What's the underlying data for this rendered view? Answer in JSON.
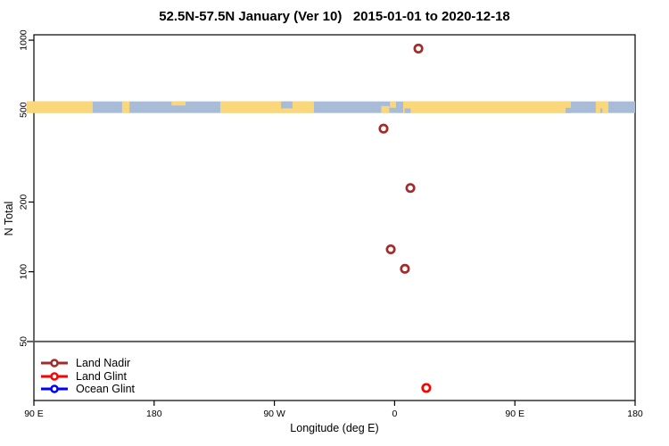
{
  "title": "52.5N-57.5N January (Ver 10)   2015-01-01 to 2020-12-18",
  "legend": {
    "items": [
      {
        "label": "Land Nadir",
        "color": "#A52A2A"
      },
      {
        "label": "Land Glint",
        "color": "#FF0000"
      },
      {
        "label": "Ocean Glint",
        "color": "#0000FF"
      }
    ]
  },
  "map_strip": {
    "description": "land/ocean map band drawn at N=500 level",
    "land_color": "#FBD77C",
    "ocean_color": "#A8BCD8",
    "extent_deg": [
      84.7,
      540
    ],
    "land_segments": [
      {
        "from": 84.7,
        "to": 134.0
      },
      {
        "from": 156.0,
        "to": 161.5
      },
      {
        "from": 193.0,
        "to": 203.5,
        "frac": 0.35,
        "align": "top"
      },
      {
        "from": 229.5,
        "to": 299.6
      },
      {
        "from": 350.0,
        "to": 356.0,
        "frac": 0.6,
        "align": "bottom"
      },
      {
        "from": 356.5,
        "to": 361.0,
        "frac": 0.55,
        "align": "top"
      },
      {
        "from": 366.4,
        "to": 491.9
      },
      {
        "from": 510.5,
        "to": 520.0
      }
    ],
    "ocean_notches": [
      {
        "from": 275.0,
        "to": 283.5,
        "frac": 0.6,
        "align": "top"
      },
      {
        "from": 367.5,
        "to": 372.0,
        "frac": 0.4,
        "align": "bottom"
      },
      {
        "from": 488.0,
        "to": 492.0,
        "frac": 0.45,
        "align": "bottom"
      },
      {
        "from": 514.0,
        "to": 515.5,
        "frac": 0.4,
        "align": "bottom"
      }
    ]
  },
  "chart_data": {
    "type": "scatter",
    "title": "52.5N-57.5N January (Ver 10)   2015-01-01 to 2020-12-18",
    "xlabel": "Longitude (deg E)",
    "ylabel": "N Total",
    "x_mode": "longitude unwrapped eastward from 90E",
    "xlim": [
      90,
      540
    ],
    "x_ticks": [
      {
        "pos": 90,
        "label": "90 E"
      },
      {
        "pos": 180,
        "label": "180"
      },
      {
        "pos": 270,
        "label": "90 W"
      },
      {
        "pos": 360,
        "label": "0"
      },
      {
        "pos": 450,
        "label": "90 E"
      },
      {
        "pos": 540,
        "label": "180"
      }
    ],
    "y_scale": "log10",
    "ylim": [
      27.8,
      1055
    ],
    "y_ticks": [
      {
        "value": 1000,
        "label": "1000"
      },
      {
        "value": 500,
        "label": "500"
      },
      {
        "value": 200,
        "label": "200"
      },
      {
        "value": 100,
        "label": "100"
      },
      {
        "value": 50,
        "label": "50"
      }
    ],
    "reference_line": {
      "y": 50,
      "color": "#555555"
    },
    "grid": "off",
    "legend_position": "bottom-left",
    "marker": {
      "shape": "open-circle",
      "radius": 4.2,
      "stroke_width": 2.7
    },
    "series": [
      {
        "name": "Land Nadir",
        "color": "#A52A2A",
        "points": [
          {
            "lon_deg_e": 17.8,
            "axis_x": 377.8,
            "n_total": 920
          },
          {
            "lon_deg_e": -8.3,
            "axis_x": 351.7,
            "n_total": 415
          },
          {
            "lon_deg_e": 11.8,
            "axis_x": 371.8,
            "n_total": 230
          },
          {
            "lon_deg_e": -2.9,
            "axis_x": 357.1,
            "n_total": 125
          },
          {
            "lon_deg_e": 7.7,
            "axis_x": 367.7,
            "n_total": 103
          }
        ]
      },
      {
        "name": "Land Glint",
        "color": "#FF0000",
        "points": [
          {
            "lon_deg_e": 23.7,
            "axis_x": 383.7,
            "n_total": 31.5
          }
        ]
      },
      {
        "name": "Ocean Glint",
        "color": "#0000FF",
        "points": []
      }
    ]
  }
}
